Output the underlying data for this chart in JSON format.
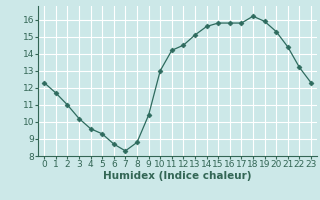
{
  "x": [
    0,
    1,
    2,
    3,
    4,
    5,
    6,
    7,
    8,
    9,
    10,
    11,
    12,
    13,
    14,
    15,
    16,
    17,
    18,
    19,
    20,
    21,
    22,
    23
  ],
  "y": [
    12.3,
    11.7,
    11.0,
    10.2,
    9.6,
    9.3,
    8.7,
    8.3,
    8.8,
    10.4,
    13.0,
    14.2,
    14.5,
    15.1,
    15.6,
    15.8,
    15.8,
    15.8,
    16.2,
    15.9,
    15.3,
    14.4,
    13.2,
    12.3
  ],
  "xlabel": "Humidex (Indice chaleur)",
  "line_color": "#2e6b5e",
  "marker": "D",
  "marker_size": 2.5,
  "bg_color": "#cce8e8",
  "grid_color": "#ffffff",
  "xlim": [
    -0.5,
    23.5
  ],
  "ylim": [
    8,
    16.8
  ],
  "yticks": [
    8,
    9,
    10,
    11,
    12,
    13,
    14,
    15,
    16
  ],
  "xticks": [
    0,
    1,
    2,
    3,
    4,
    5,
    6,
    7,
    8,
    9,
    10,
    11,
    12,
    13,
    14,
    15,
    16,
    17,
    18,
    19,
    20,
    21,
    22,
    23
  ],
  "tick_fontsize": 6.5,
  "xlabel_fontsize": 7.5,
  "axis_color": "#336655"
}
